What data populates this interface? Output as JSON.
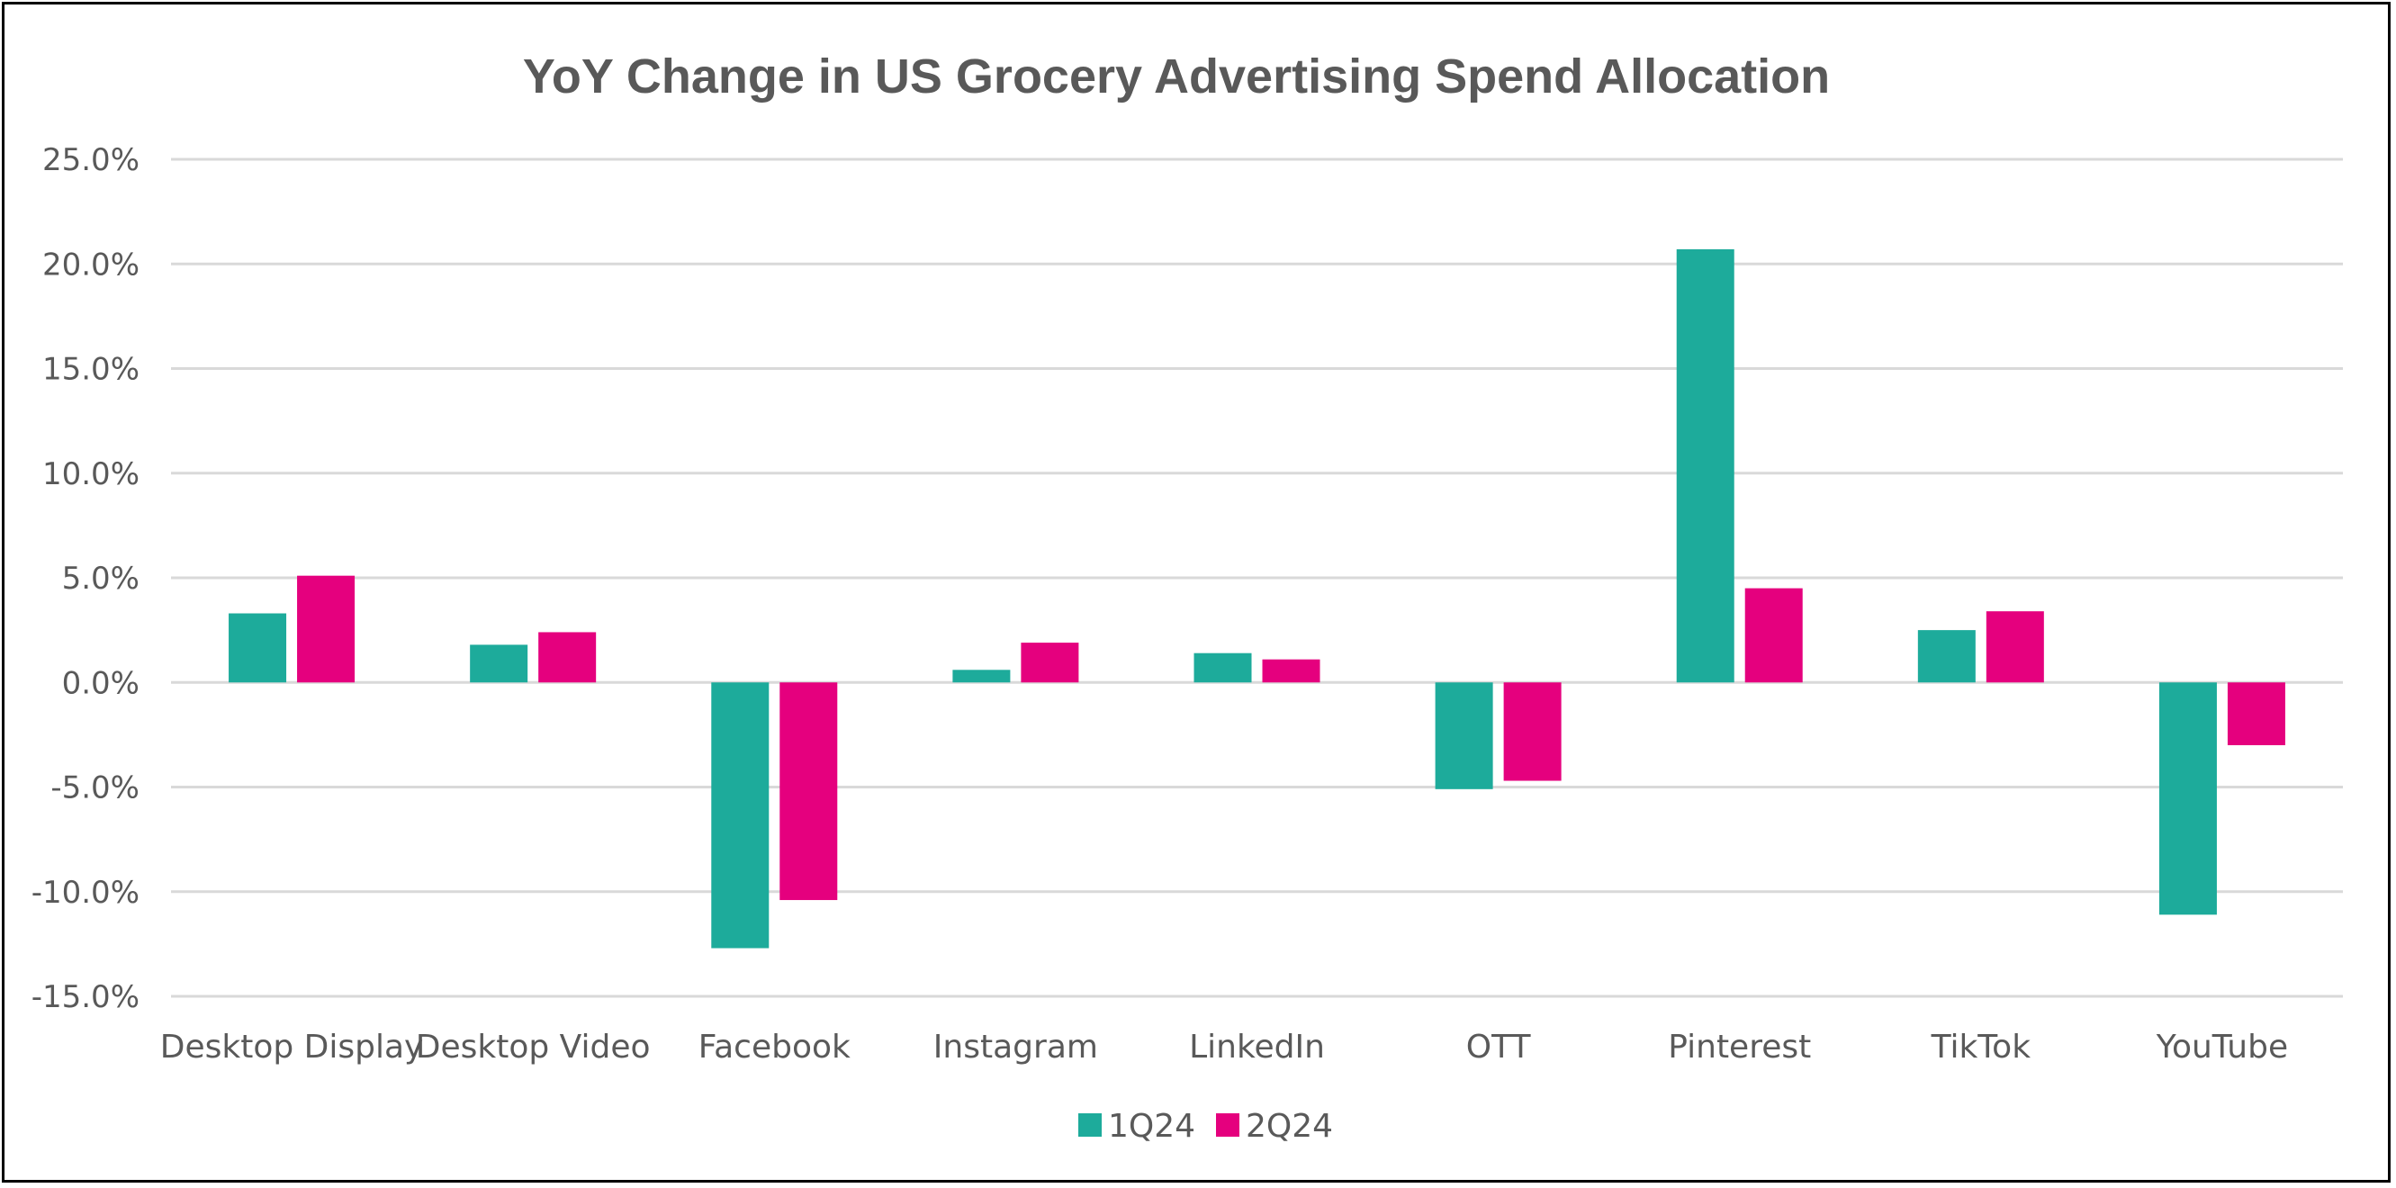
{
  "chart_data": {
    "type": "bar",
    "title": "YoY Change in US Grocery Advertising Spend Allocation",
    "xlabel": "",
    "ylabel": "",
    "categories": [
      "Desktop Display",
      "Desktop Video",
      "Facebook",
      "Instagram",
      "LinkedIn",
      "OTT",
      "Pinterest",
      "TikTok",
      "YouTube"
    ],
    "series": [
      {
        "name": "1Q24",
        "color": "#1DAB9B",
        "values": [
          3.3,
          1.8,
          -12.7,
          0.6,
          1.4,
          -5.1,
          20.7,
          2.5,
          -11.1
        ]
      },
      {
        "name": "2Q24",
        "color": "#E5007E",
        "values": [
          5.1,
          2.4,
          -10.4,
          1.9,
          1.1,
          -4.7,
          4.5,
          3.4,
          -3.0
        ]
      }
    ],
    "ylim": [
      -15,
      25
    ],
    "yticks": [
      "25.0%",
      "20.0%",
      "15.0%",
      "10.0%",
      "5.0%",
      "0.0%",
      "-5.0%",
      "-10.0%",
      "-15.0%"
    ],
    "ytick_values": [
      25,
      20,
      15,
      10,
      5,
      0,
      -5,
      -10,
      -15
    ],
    "grid": true,
    "legend_position": "bottom-center"
  }
}
